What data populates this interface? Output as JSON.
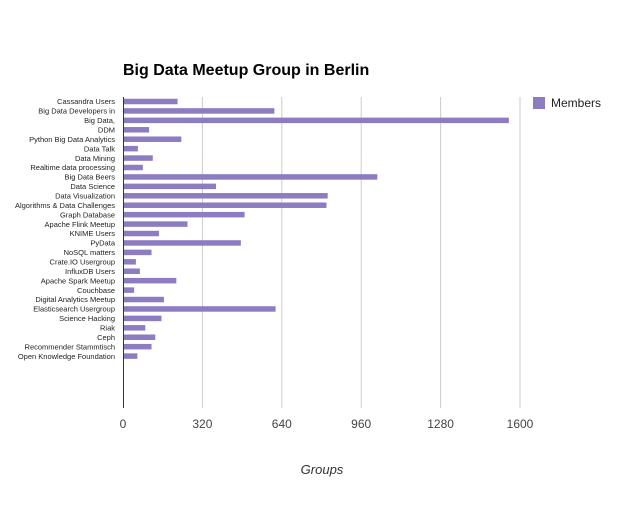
{
  "chart_data": {
    "type": "bar",
    "orientation": "horizontal",
    "title": "Big Data Meetup Group in Berlin",
    "xlabel": "Groups",
    "ylabel": "",
    "xlim": [
      0,
      1600
    ],
    "xticks": [
      "0",
      "320",
      "640",
      "960",
      "1280",
      "1600"
    ],
    "grid": true,
    "legend_position": "top-right",
    "categories": [
      "Cassandra Users",
      "Big Data Developers in",
      "Big Data,",
      "DDM",
      "Python Big Data Analytics",
      "Data Talk",
      "Data Mining",
      "Realtime data processing",
      "Big Data Beers",
      "Data Science",
      "Data Visualization",
      "Algorithms & Data Challenges",
      "Graph Database",
      "Apache Flink Meetup",
      "KNIME Users",
      "PyData",
      "NoSQL matters",
      "Crate.IO Usergroup",
      "InfluxDB Users",
      "Apache Spark Meetup",
      "Couchbase",
      "Digital Analytics Meetup",
      "Elasticsearch Usergroup",
      "Science Hacking",
      "Riak",
      "Ceph",
      "Recommender Stammtisch",
      "Open Knowledge Foundation"
    ],
    "series": [
      {
        "name": "Members",
        "color": "#8e7cc3",
        "values": [
          220,
          610,
          1555,
          105,
          235,
          60,
          120,
          80,
          1025,
          375,
          825,
          820,
          490,
          260,
          145,
          475,
          115,
          52,
          68,
          215,
          45,
          165,
          615,
          155,
          90,
          130,
          115,
          58
        ]
      }
    ]
  }
}
